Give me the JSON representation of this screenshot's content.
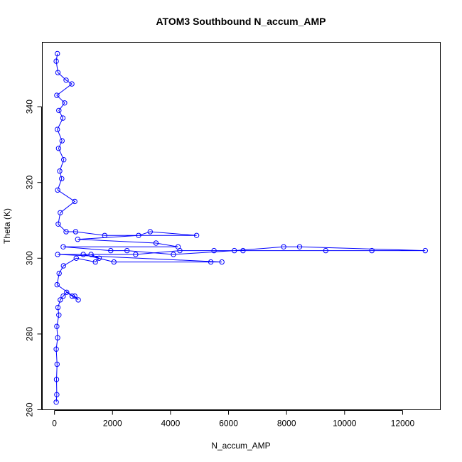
{
  "chart_data": {
    "type": "scatter",
    "title": "ATOM3 Southbound N_accum_AMP",
    "xlabel": "N_accum_AMP",
    "ylabel": "Theta (K)",
    "xlim": [
      -420,
      13300
    ],
    "ylim": [
      260,
      357
    ],
    "xticks": [
      0,
      2000,
      4000,
      6000,
      8000,
      10000,
      12000
    ],
    "yticks": [
      260,
      280,
      300,
      320,
      340
    ],
    "grid": false,
    "legend": "none",
    "marker": "open-circle",
    "connected": true,
    "color": "#0000ff",
    "series": [
      {
        "values": [
          [
            60,
            262
          ],
          [
            80,
            264
          ],
          [
            70,
            268
          ],
          [
            90,
            272
          ],
          [
            60,
            276
          ],
          [
            110,
            279
          ],
          [
            80,
            282
          ],
          [
            150,
            285
          ],
          [
            120,
            287
          ],
          [
            200,
            289
          ],
          [
            300,
            290
          ],
          [
            420,
            291
          ],
          [
            610,
            290
          ],
          [
            700,
            290
          ],
          [
            820,
            289
          ],
          [
            90,
            293
          ],
          [
            160,
            296
          ],
          [
            310,
            298
          ],
          [
            750,
            300
          ],
          [
            1410,
            299
          ],
          [
            1540,
            300
          ],
          [
            1260,
            301
          ],
          [
            990,
            301
          ],
          [
            2050,
            299
          ],
          [
            5390,
            299
          ],
          [
            5770,
            299
          ],
          [
            110,
            301
          ],
          [
            2800,
            301
          ],
          [
            4320,
            302
          ],
          [
            5500,
            302
          ],
          [
            6500,
            302
          ],
          [
            9350,
            302
          ],
          [
            10940,
            302
          ],
          [
            12780,
            302
          ],
          [
            8450,
            303
          ],
          [
            7900,
            303
          ],
          [
            6200,
            302
          ],
          [
            4100,
            301
          ],
          [
            2500,
            302
          ],
          [
            1940,
            302
          ],
          [
            300,
            303
          ],
          [
            4260,
            303
          ],
          [
            3500,
            304
          ],
          [
            800,
            305
          ],
          [
            2900,
            306
          ],
          [
            3300,
            307
          ],
          [
            4900,
            306
          ],
          [
            1730,
            306
          ],
          [
            730,
            307
          ],
          [
            400,
            307
          ],
          [
            130,
            309
          ],
          [
            200,
            312
          ],
          [
            700,
            315
          ],
          [
            110,
            318
          ],
          [
            250,
            321
          ],
          [
            180,
            323
          ],
          [
            320,
            326
          ],
          [
            140,
            329
          ],
          [
            260,
            331
          ],
          [
            100,
            334
          ],
          [
            290,
            337
          ],
          [
            150,
            339
          ],
          [
            350,
            341
          ],
          [
            80,
            343
          ],
          [
            600,
            346
          ],
          [
            400,
            347
          ],
          [
            120,
            349
          ],
          [
            60,
            352
          ],
          [
            100,
            354
          ]
        ]
      }
    ]
  }
}
